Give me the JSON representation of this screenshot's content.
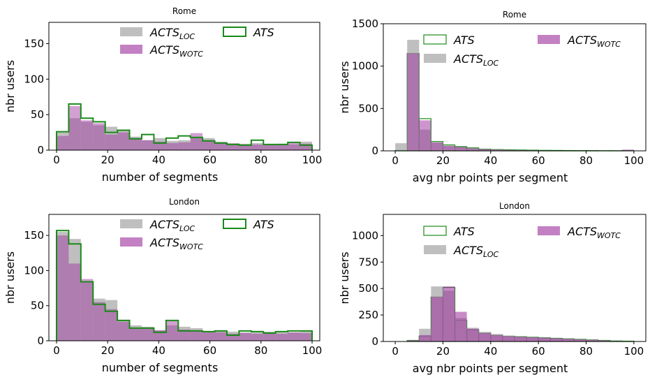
{
  "colors": {
    "ats": "#2ca02c",
    "ats_edge": "#1a8a1a",
    "acts_loc": "#a9a9a9",
    "acts_wotc": "#9b2c9b"
  },
  "chart_data": [
    {
      "type": "bar",
      "title": "Rome",
      "xlabel": "number of segments",
      "ylabel": "nbr users",
      "xlim": [
        -3,
        103
      ],
      "ylim": [
        0,
        180
      ],
      "xticks": [
        0,
        20,
        40,
        60,
        80,
        100
      ],
      "yticks": [
        0,
        50,
        100,
        150
      ],
      "bin_edges": [
        0,
        4.76,
        9.52,
        14.29,
        19.05,
        23.81,
        28.57,
        33.33,
        38.1,
        42.86,
        47.62,
        52.38,
        57.14,
        61.9,
        66.67,
        71.43,
        76.19,
        80.95,
        85.71,
        90.48,
        95.24,
        100
      ],
      "legend": {
        "ncol": 2,
        "position": "upper center"
      },
      "series": [
        {
          "name": "ACTS",
          "sub": "LOC",
          "style": "bar",
          "color_key": "acts_loc",
          "opacity": 0.75,
          "values": [
            25,
            45,
            40,
            35,
            33,
            29,
            19,
            14,
            17,
            13,
            14,
            18,
            17,
            12,
            10,
            9,
            10,
            8,
            9,
            8,
            12
          ]
        },
        {
          "name": "ACTS",
          "sub": "WOTC",
          "style": "bar",
          "color_key": "acts_wotc",
          "opacity": 0.45,
          "values": [
            20,
            62,
            42,
            38,
            22,
            25,
            17,
            14,
            12,
            10,
            11,
            24,
            14,
            10,
            9,
            8,
            8,
            7,
            8,
            10,
            9
          ]
        },
        {
          "name": "ATS",
          "sub": "",
          "style": "step",
          "color_key": "ats_edge",
          "values": [
            26,
            65,
            45,
            40,
            25,
            28,
            16,
            22,
            10,
            17,
            20,
            18,
            13,
            10,
            8,
            7,
            14,
            8,
            8,
            11,
            7
          ]
        }
      ]
    },
    {
      "type": "bar",
      "title": "Rome",
      "xlabel": "avg nbr points per segment",
      "ylabel": "nbr users",
      "xlim": [
        -5,
        105
      ],
      "ylim": [
        0,
        1500
      ],
      "xticks": [
        0,
        20,
        40,
        60,
        80,
        100
      ],
      "yticks": [
        0,
        500,
        1000,
        1500
      ],
      "bin_edges": [
        0,
        5,
        10,
        15,
        20,
        25,
        30,
        35,
        40,
        45,
        50,
        55,
        60,
        65,
        70,
        75,
        80,
        85,
        90,
        95,
        100
      ],
      "legend": {
        "ncol": 2,
        "position": "upper center"
      },
      "series": [
        {
          "name": "ATS",
          "sub": "",
          "style": "outline",
          "color_key": "ats_edge",
          "values": [
            5,
            1150,
            380,
            110,
            70,
            50,
            35,
            20,
            15,
            12,
            10,
            8,
            6,
            5,
            4,
            3,
            3,
            2,
            2,
            2
          ]
        },
        {
          "name": "ACTS",
          "sub": "LOC",
          "style": "bar",
          "color_key": "acts_loc",
          "opacity": 0.75,
          "values": [
            90,
            1310,
            250,
            100,
            60,
            45,
            30,
            20,
            15,
            10,
            8,
            6,
            5,
            4,
            3,
            3,
            2,
            2,
            2,
            2
          ]
        },
        {
          "name": "ACTS",
          "sub": "WOTC",
          "style": "bar",
          "color_key": "acts_wotc",
          "opacity": 0.5,
          "values": [
            0,
            1150,
            360,
            100,
            60,
            45,
            30,
            20,
            15,
            10,
            8,
            6,
            5,
            4,
            3,
            3,
            2,
            2,
            2,
            15
          ]
        }
      ]
    },
    {
      "type": "bar",
      "title": "London",
      "xlabel": "number of segments",
      "ylabel": "nbr users",
      "xlim": [
        -3,
        103
      ],
      "ylim": [
        0,
        180
      ],
      "xticks": [
        0,
        20,
        40,
        60,
        80,
        100
      ],
      "yticks": [
        0,
        50,
        100,
        150
      ],
      "bin_edges": [
        0,
        4.76,
        9.52,
        14.29,
        19.05,
        23.81,
        28.57,
        33.33,
        38.1,
        42.86,
        47.62,
        52.38,
        57.14,
        61.9,
        66.67,
        71.43,
        76.19,
        80.95,
        85.71,
        90.48,
        95.24,
        100
      ],
      "legend": {
        "ncol": 2,
        "position": "upper center"
      },
      "series": [
        {
          "name": "ACTS",
          "sub": "LOC",
          "style": "bar",
          "color_key": "acts_loc",
          "opacity": 0.75,
          "values": [
            155,
            145,
            85,
            60,
            58,
            30,
            22,
            20,
            15,
            22,
            20,
            18,
            14,
            15,
            13,
            12,
            12,
            13,
            12,
            12,
            13
          ]
        },
        {
          "name": "ACTS",
          "sub": "WOTC",
          "style": "bar",
          "color_key": "acts_wotc",
          "opacity": 0.45,
          "values": [
            150,
            110,
            88,
            55,
            45,
            27,
            18,
            17,
            15,
            28,
            16,
            15,
            12,
            12,
            10,
            11,
            10,
            11,
            10,
            12,
            11
          ]
        },
        {
          "name": "ATS",
          "sub": "",
          "style": "step",
          "color_key": "ats_edge",
          "values": [
            157,
            138,
            84,
            52,
            42,
            29,
            18,
            18,
            12,
            29,
            14,
            14,
            13,
            14,
            8,
            14,
            13,
            11,
            13,
            14,
            14
          ]
        }
      ]
    },
    {
      "type": "bar",
      "title": "London",
      "xlabel": "avg nbr points per segment",
      "ylabel": "nbr users",
      "xlim": [
        -5,
        105
      ],
      "ylim": [
        0,
        1200
      ],
      "xticks": [
        0,
        20,
        40,
        60,
        80,
        100
      ],
      "yticks": [
        0,
        250,
        500,
        750,
        1000
      ],
      "bin_edges": [
        0,
        5,
        10,
        15,
        20,
        25,
        30,
        35,
        40,
        45,
        50,
        55,
        60,
        65,
        70,
        75,
        80,
        85,
        90,
        95,
        100
      ],
      "legend": {
        "ncol": 2,
        "position": "upper center"
      },
      "series": [
        {
          "name": "ATS",
          "sub": "",
          "style": "outline",
          "color_key": "ats_edge",
          "values": [
            0,
            10,
            50,
            420,
            510,
            200,
            110,
            80,
            60,
            50,
            45,
            40,
            35,
            30,
            25,
            20,
            15,
            10,
            5,
            3
          ]
        },
        {
          "name": "ACTS",
          "sub": "LOC",
          "style": "bar",
          "color_key": "acts_loc",
          "opacity": 0.75,
          "values": [
            0,
            10,
            120,
            520,
            480,
            220,
            130,
            90,
            70,
            55,
            45,
            40,
            35,
            30,
            25,
            20,
            15,
            10,
            5,
            3
          ]
        },
        {
          "name": "ACTS",
          "sub": "WOTC",
          "style": "bar",
          "color_key": "acts_wotc",
          "opacity": 0.55,
          "values": [
            0,
            10,
            60,
            420,
            520,
            280,
            120,
            80,
            60,
            50,
            45,
            40,
            35,
            30,
            25,
            20,
            15,
            10,
            5,
            3
          ]
        }
      ]
    }
  ]
}
